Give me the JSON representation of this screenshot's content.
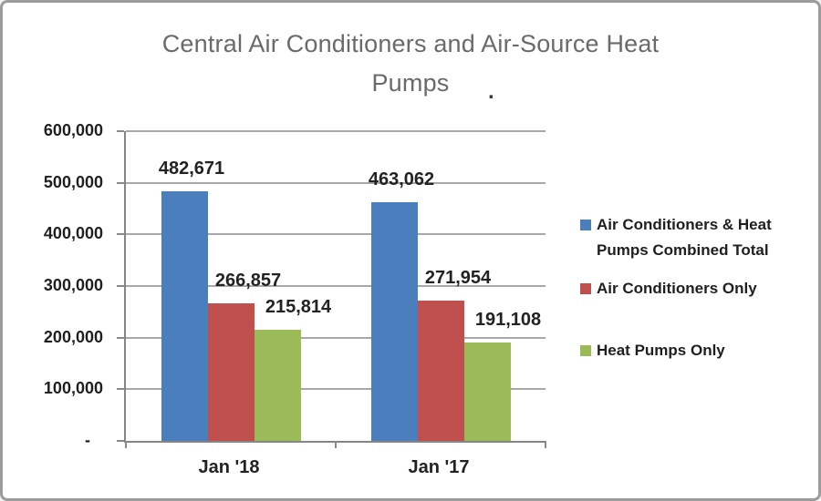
{
  "window": {
    "background": "#ffffff",
    "border_color": "#9c9c9c"
  },
  "title": {
    "text": "Central Air Conditioners and Air-Source Heat Pumps",
    "line1": "Central Air Conditioners and Air-Source Heat",
    "line2": "Pumps",
    "stray_dot": ".",
    "color": "#6a6a6a"
  },
  "chart_data": {
    "type": "bar",
    "title": "Central Air Conditioners and Air-Source Heat Pumps",
    "categories": [
      "Jan '18",
      "Jan '17"
    ],
    "series": [
      {
        "name": "Air Conditioners & Heat Pumps Combined Total",
        "legend_lines": [
          "Air Conditioners & Heat",
          "Pumps Combined Total"
        ],
        "color": "#4A7EBD",
        "values": [
          482671,
          463062
        ],
        "data_labels": [
          "482,671",
          "463,062"
        ]
      },
      {
        "name": "Air Conditioners Only",
        "legend_lines": [
          "Air Conditioners Only"
        ],
        "color": "#C0504D",
        "values": [
          266857,
          271954
        ],
        "data_labels": [
          "266,857",
          "271,954"
        ]
      },
      {
        "name": "Heat Pumps Only",
        "legend_lines": [
          "Heat Pumps Only"
        ],
        "color": "#9BBB59",
        "values": [
          215814,
          191108
        ],
        "data_labels": [
          "215,814",
          "191,108"
        ]
      }
    ],
    "ylim": [
      0,
      600000
    ],
    "ytick_interval": 100000,
    "ytick_labels": [
      "600,000",
      "500,000",
      "400,000",
      "300,000",
      "200,000",
      "100,000",
      "-"
    ],
    "grid": true,
    "legend_position": "right",
    "axis_color": "#858585",
    "gridline_color": "#a8a8a8"
  }
}
